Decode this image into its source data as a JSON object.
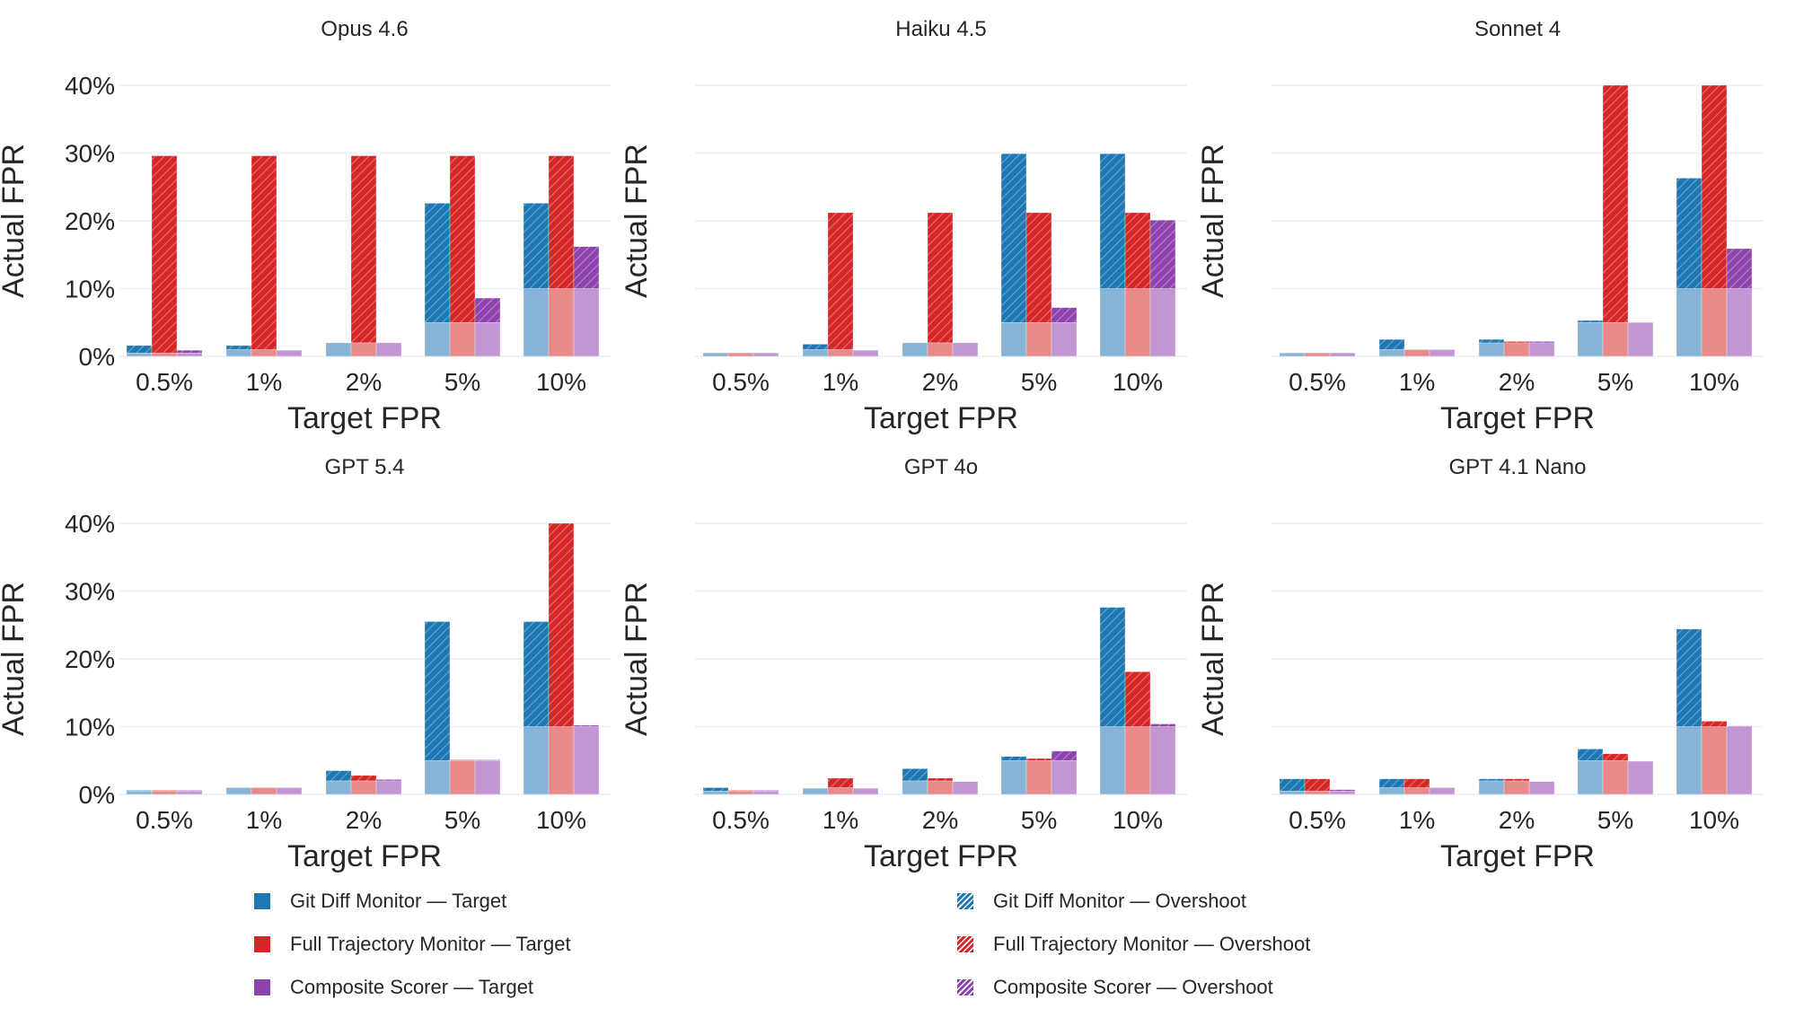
{
  "chart_data": {
    "type": "bar",
    "variant": "grouped, stacked target/overshoot, small multiples",
    "categories": [
      "0.5%",
      "1%",
      "2%",
      "5%",
      "10%"
    ],
    "targets": [
      0.5,
      1,
      2,
      5,
      10
    ],
    "xlabel": "Target FPR",
    "ylabel": "Actual FPR",
    "ylim": [
      0,
      40
    ],
    "yticks": [
      "0%",
      "10%",
      "20%",
      "30%",
      "40%"
    ],
    "ytick_values": [
      0,
      10,
      20,
      30,
      40
    ],
    "grid": "horizontal",
    "legend_placement": "bottom",
    "monitors": [
      {
        "name": "Git Diff Monitor",
        "color": "#1f77b4",
        "light": "#85b4d6"
      },
      {
        "name": "Full Trajectory Monitor",
        "color": "#d62728",
        "light": "#e98a8a"
      },
      {
        "name": "Composite Scorer",
        "color": "#8e44ad",
        "light": "#c196d3"
      }
    ],
    "legend": [
      {
        "label": "Git Diff Monitor — Target",
        "monitor": 0,
        "hatched": false
      },
      {
        "label": "Full Trajectory Monitor — Target",
        "monitor": 1,
        "hatched": false
      },
      {
        "label": "Composite Scorer — Target",
        "monitor": 2,
        "hatched": false
      },
      {
        "label": "Git Diff Monitor — Overshoot",
        "monitor": 0,
        "hatched": true
      },
      {
        "label": "Full Trajectory Monitor — Overshoot",
        "monitor": 1,
        "hatched": true
      },
      {
        "label": "Composite Scorer — Overshoot",
        "monitor": 2,
        "hatched": true
      }
    ],
    "panels": [
      {
        "title": "Opus 4.6",
        "series": [
          {
            "name": "Git Diff Monitor",
            "values": [
              1.6,
              1.6,
              2.0,
              22.6,
              22.6
            ]
          },
          {
            "name": "Full Trajectory Monitor",
            "values": [
              29.6,
              29.6,
              29.6,
              29.6,
              29.6
            ]
          },
          {
            "name": "Composite Scorer",
            "values": [
              0.9,
              0.9,
              2.0,
              8.6,
              16.2
            ]
          }
        ]
      },
      {
        "title": "Haiku 4.5",
        "series": [
          {
            "name": "Git Diff Monitor",
            "values": [
              0.5,
              1.8,
              2.0,
              29.9,
              29.9
            ]
          },
          {
            "name": "Full Trajectory Monitor",
            "values": [
              0.5,
              21.2,
              21.2,
              21.2,
              21.2
            ]
          },
          {
            "name": "Composite Scorer",
            "values": [
              0.5,
              0.9,
              2.0,
              7.2,
              20.1
            ]
          }
        ]
      },
      {
        "title": "Sonnet 4",
        "series": [
          {
            "name": "Git Diff Monitor",
            "values": [
              0.5,
              2.5,
              2.5,
              5.3,
              26.3
            ]
          },
          {
            "name": "Full Trajectory Monitor",
            "values": [
              0.5,
              1.0,
              2.2,
              40.0,
              40.0
            ]
          },
          {
            "name": "Composite Scorer",
            "values": [
              0.5,
              1.0,
              2.2,
              5.0,
              15.9
            ]
          }
        ]
      },
      {
        "title": "GPT 5.4",
        "series": [
          {
            "name": "Git Diff Monitor",
            "values": [
              0.6,
              1.0,
              3.5,
              25.5,
              25.5
            ]
          },
          {
            "name": "Full Trajectory Monitor",
            "values": [
              0.6,
              1.0,
              2.8,
              5.1,
              41.2
            ]
          },
          {
            "name": "Composite Scorer",
            "values": [
              0.6,
              1.0,
              2.2,
              5.1,
              10.2
            ]
          }
        ]
      },
      {
        "title": "GPT 4o",
        "series": [
          {
            "name": "Git Diff Monitor",
            "values": [
              1.0,
              0.9,
              3.8,
              5.6,
              27.6
            ]
          },
          {
            "name": "Full Trajectory Monitor",
            "values": [
              0.6,
              2.4,
              2.4,
              5.3,
              18.1
            ]
          },
          {
            "name": "Composite Scorer",
            "values": [
              0.6,
              0.9,
              1.9,
              6.4,
              10.4
            ]
          }
        ]
      },
      {
        "title": "GPT 4.1 Nano",
        "series": [
          {
            "name": "Git Diff Monitor",
            "values": [
              2.3,
              2.3,
              2.3,
              6.7,
              24.4
            ]
          },
          {
            "name": "Full Trajectory Monitor",
            "values": [
              2.3,
              2.3,
              2.3,
              6.0,
              10.8
            ]
          },
          {
            "name": "Composite Scorer",
            "values": [
              0.7,
              1.0,
              1.9,
              4.9,
              10.1
            ]
          }
        ]
      }
    ]
  }
}
